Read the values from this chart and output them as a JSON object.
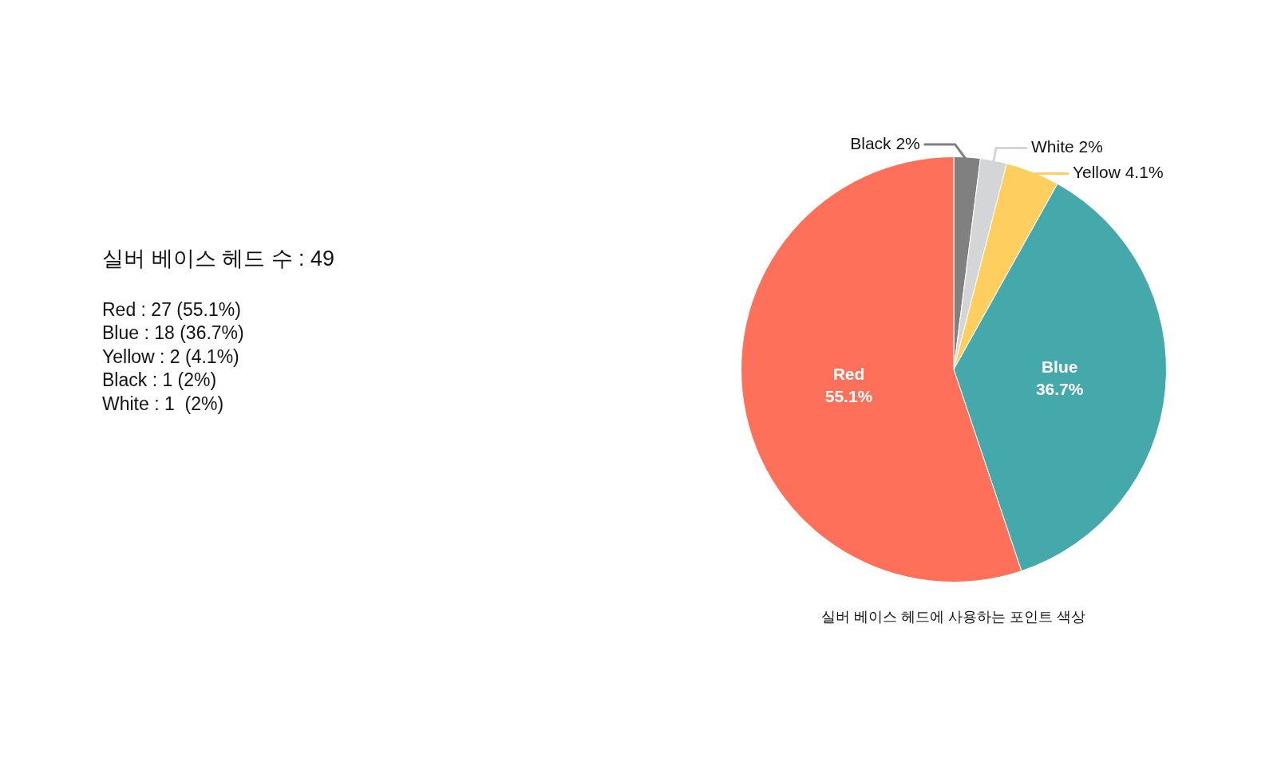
{
  "chart_data": {
    "type": "pie",
    "title": "실버 베이스 헤드에 사용하는 포인트 색상",
    "categories": [
      "Black",
      "White",
      "Yellow",
      "Blue",
      "Red"
    ],
    "values": [
      2,
      2,
      4.1,
      36.7,
      55.1
    ],
    "colors": [
      "#808080",
      "#d4d5d7",
      "#fecf5f",
      "#45a8aa",
      "#fe7059"
    ],
    "value_labels": [
      "2%",
      "2%",
      "4.1%",
      "36.7%",
      "55.1%"
    ],
    "annotations": [
      "실버 베이스 헤드 수 : 49",
      "Red : 27 (55.1%)",
      "Blue : 18 (36.7%)",
      "Yellow : 2 (4.1%)",
      "Black : 1 (2%)",
      "White : 1  (2%)"
    ]
  }
}
